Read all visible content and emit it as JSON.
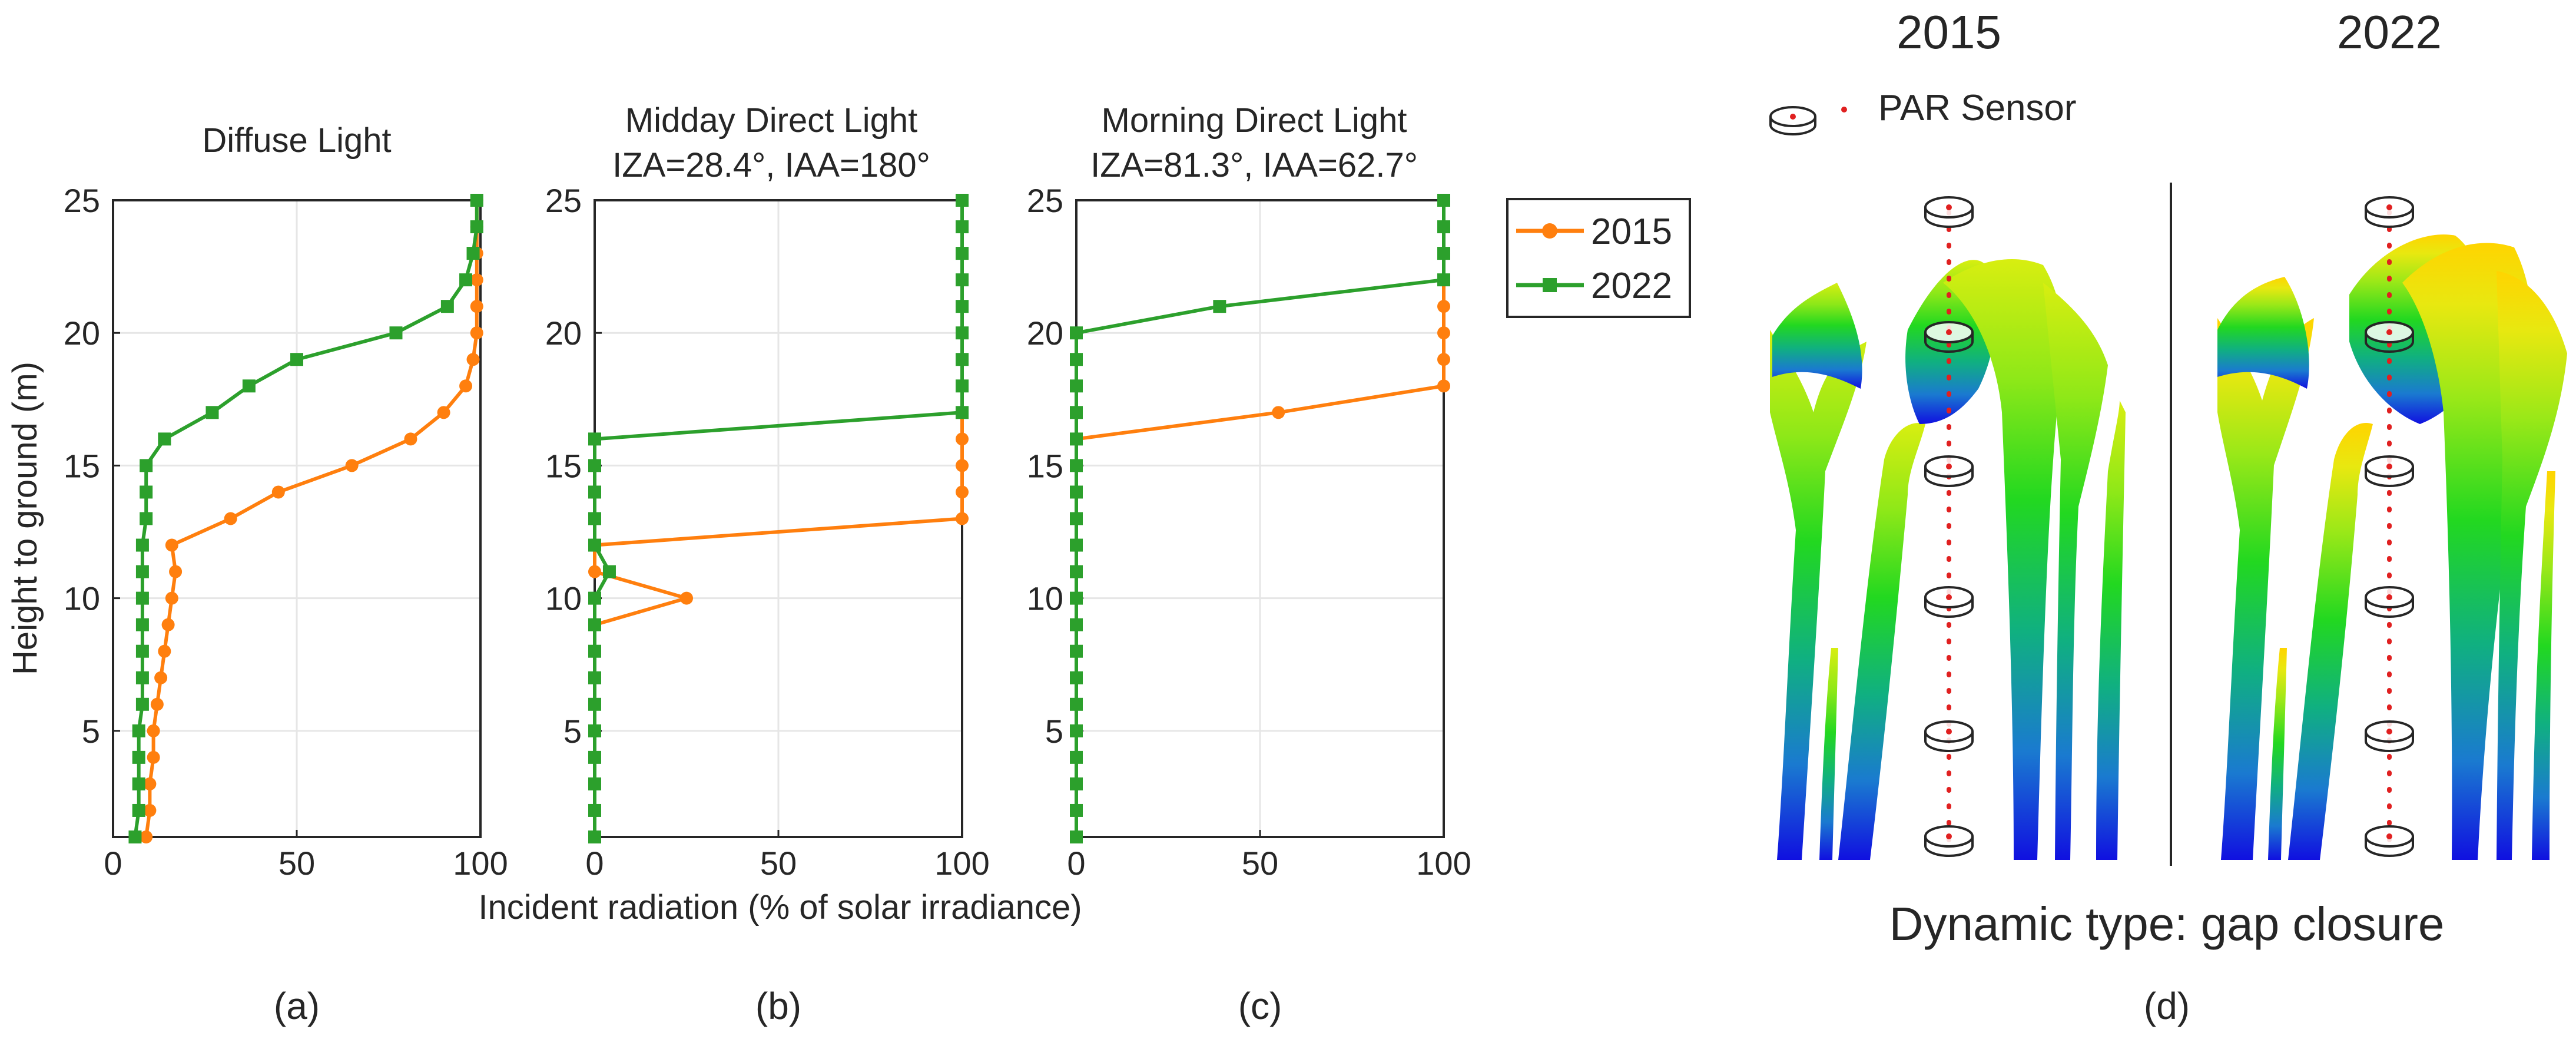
{
  "figure": {
    "shared_xlabel": "Incident radiation (% of solar irradiance)",
    "ylabel": "Height to ground (m)",
    "panel_labels": [
      "(a)",
      "(b)",
      "(c)",
      "(d)"
    ],
    "legend": [
      {
        "label": "2015",
        "color": "#ff7f0e",
        "marker": "circle"
      },
      {
        "label": "2022",
        "color": "#2ca02c",
        "marker": "square"
      }
    ]
  },
  "chart_data": [
    {
      "type": "line",
      "title": "Diffuse Light",
      "subtitle": "",
      "xlabel": "Incident radiation (% of solar irradiance)",
      "ylabel": "Height to ground (m)",
      "xlim": [
        0,
        100
      ],
      "ylim": [
        1,
        25
      ],
      "xticks": [
        0,
        50,
        100
      ],
      "yticks": [
        5,
        10,
        15,
        20,
        25
      ],
      "grid": true,
      "series": [
        {
          "name": "2015",
          "color": "#ff7f0e",
          "marker": "circle",
          "x": [
            9,
            10,
            10,
            11,
            11,
            12,
            13,
            14,
            15,
            16,
            17,
            16,
            32,
            45,
            65,
            81,
            90,
            96,
            98,
            99,
            99,
            99,
            99,
            99,
            99
          ],
          "y": [
            1,
            2,
            3,
            4,
            5,
            6,
            7,
            8,
            9,
            10,
            11,
            12,
            13,
            14,
            15,
            16,
            17,
            18,
            19,
            20,
            21,
            22,
            23,
            24,
            25
          ]
        },
        {
          "name": "2022",
          "color": "#2ca02c",
          "marker": "square",
          "x": [
            6,
            7,
            7,
            7,
            7,
            8,
            8,
            8,
            8,
            8,
            8,
            8,
            9,
            9,
            9,
            14,
            27,
            37,
            50,
            77,
            91,
            96,
            98,
            99,
            99
          ],
          "y": [
            1,
            2,
            3,
            4,
            5,
            6,
            7,
            8,
            9,
            10,
            11,
            12,
            13,
            14,
            15,
            16,
            17,
            18,
            19,
            20,
            21,
            22,
            23,
            24,
            25
          ]
        }
      ]
    },
    {
      "type": "line",
      "title": "Midday Direct Light",
      "subtitle": "IZA=28.4°, IAA=180°",
      "xlabel": "Incident radiation (% of solar irradiance)",
      "ylabel": "",
      "xlim": [
        0,
        100
      ],
      "ylim": [
        1,
        25
      ],
      "xticks": [
        0,
        50,
        100
      ],
      "yticks": [
        5,
        10,
        15,
        20,
        25
      ],
      "grid": true,
      "series": [
        {
          "name": "2015",
          "color": "#ff7f0e",
          "marker": "circle",
          "x": [
            0,
            0,
            0,
            0,
            0,
            0,
            0,
            0,
            0,
            25,
            0,
            0,
            100,
            100,
            100,
            100,
            100,
            100,
            100,
            100,
            100,
            100,
            100,
            100,
            100
          ],
          "y": [
            1,
            2,
            3,
            4,
            5,
            6,
            7,
            8,
            9,
            10,
            11,
            12,
            13,
            14,
            15,
            16,
            17,
            18,
            19,
            20,
            21,
            22,
            23,
            24,
            25
          ]
        },
        {
          "name": "2022",
          "color": "#2ca02c",
          "marker": "square",
          "x": [
            0,
            0,
            0,
            0,
            0,
            0,
            0,
            0,
            0,
            0,
            4,
            0,
            0,
            0,
            0,
            0,
            100,
            100,
            100,
            100,
            100,
            100,
            100,
            100,
            100
          ],
          "y": [
            1,
            2,
            3,
            4,
            5,
            6,
            7,
            8,
            9,
            10,
            11,
            12,
            13,
            14,
            15,
            16,
            17,
            18,
            19,
            20,
            21,
            22,
            23,
            24,
            25
          ]
        }
      ]
    },
    {
      "type": "line",
      "title": "Morning Direct Light",
      "subtitle": "IZA=81.3°, IAA=62.7°",
      "xlabel": "Incident radiation (% of solar irradiance)",
      "ylabel": "",
      "xlim": [
        0,
        100
      ],
      "ylim": [
        1,
        25
      ],
      "xticks": [
        0,
        50,
        100
      ],
      "yticks": [
        5,
        10,
        15,
        20,
        25
      ],
      "grid": true,
      "series": [
        {
          "name": "2015",
          "color": "#ff7f0e",
          "marker": "circle",
          "x": [
            0,
            0,
            0,
            0,
            0,
            0,
            0,
            0,
            0,
            0,
            0,
            0,
            0,
            0,
            0,
            0,
            55,
            100,
            100,
            100,
            100,
            100,
            100,
            100,
            100
          ],
          "y": [
            1,
            2,
            3,
            4,
            5,
            6,
            7,
            8,
            9,
            10,
            11,
            12,
            13,
            14,
            15,
            16,
            17,
            18,
            19,
            20,
            21,
            22,
            23,
            24,
            25
          ]
        },
        {
          "name": "2022",
          "color": "#2ca02c",
          "marker": "square",
          "x": [
            0,
            0,
            0,
            0,
            0,
            0,
            0,
            0,
            0,
            0,
            0,
            0,
            0,
            0,
            0,
            0,
            0,
            0,
            0,
            0,
            39,
            100,
            100,
            100,
            100
          ],
          "y": [
            1,
            2,
            3,
            4,
            5,
            6,
            7,
            8,
            9,
            10,
            11,
            12,
            13,
            14,
            15,
            16,
            17,
            18,
            19,
            20,
            21,
            22,
            23,
            24,
            25
          ]
        }
      ]
    }
  ],
  "panel_d": {
    "year_left": "2015",
    "year_right": "2022",
    "sensor_legend": "PAR Sensor",
    "caption": "Dynamic type: gap closure",
    "sensor_count": 6
  }
}
